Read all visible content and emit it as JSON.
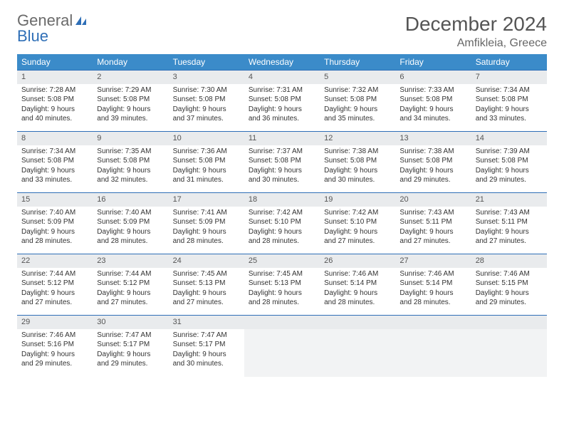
{
  "logo": {
    "word1": "General",
    "word2": "Blue"
  },
  "title": "December 2024",
  "location": "Amfikleia, Greece",
  "colors": {
    "header_bg": "#3b8bc9",
    "header_text": "#ffffff",
    "daynum_bg": "#e9ebed",
    "border": "#2f6fb7",
    "text": "#333333",
    "title_text": "#555555"
  },
  "day_headers": [
    "Sunday",
    "Monday",
    "Tuesday",
    "Wednesday",
    "Thursday",
    "Friday",
    "Saturday"
  ],
  "weeks": [
    [
      {
        "num": "1",
        "sunrise": "7:28 AM",
        "sunset": "5:08 PM",
        "daylight": "9 hours and 40 minutes."
      },
      {
        "num": "2",
        "sunrise": "7:29 AM",
        "sunset": "5:08 PM",
        "daylight": "9 hours and 39 minutes."
      },
      {
        "num": "3",
        "sunrise": "7:30 AM",
        "sunset": "5:08 PM",
        "daylight": "9 hours and 37 minutes."
      },
      {
        "num": "4",
        "sunrise": "7:31 AM",
        "sunset": "5:08 PM",
        "daylight": "9 hours and 36 minutes."
      },
      {
        "num": "5",
        "sunrise": "7:32 AM",
        "sunset": "5:08 PM",
        "daylight": "9 hours and 35 minutes."
      },
      {
        "num": "6",
        "sunrise": "7:33 AM",
        "sunset": "5:08 PM",
        "daylight": "9 hours and 34 minutes."
      },
      {
        "num": "7",
        "sunrise": "7:34 AM",
        "sunset": "5:08 PM",
        "daylight": "9 hours and 33 minutes."
      }
    ],
    [
      {
        "num": "8",
        "sunrise": "7:34 AM",
        "sunset": "5:08 PM",
        "daylight": "9 hours and 33 minutes."
      },
      {
        "num": "9",
        "sunrise": "7:35 AM",
        "sunset": "5:08 PM",
        "daylight": "9 hours and 32 minutes."
      },
      {
        "num": "10",
        "sunrise": "7:36 AM",
        "sunset": "5:08 PM",
        "daylight": "9 hours and 31 minutes."
      },
      {
        "num": "11",
        "sunrise": "7:37 AM",
        "sunset": "5:08 PM",
        "daylight": "9 hours and 30 minutes."
      },
      {
        "num": "12",
        "sunrise": "7:38 AM",
        "sunset": "5:08 PM",
        "daylight": "9 hours and 30 minutes."
      },
      {
        "num": "13",
        "sunrise": "7:38 AM",
        "sunset": "5:08 PM",
        "daylight": "9 hours and 29 minutes."
      },
      {
        "num": "14",
        "sunrise": "7:39 AM",
        "sunset": "5:08 PM",
        "daylight": "9 hours and 29 minutes."
      }
    ],
    [
      {
        "num": "15",
        "sunrise": "7:40 AM",
        "sunset": "5:09 PM",
        "daylight": "9 hours and 28 minutes."
      },
      {
        "num": "16",
        "sunrise": "7:40 AM",
        "sunset": "5:09 PM",
        "daylight": "9 hours and 28 minutes."
      },
      {
        "num": "17",
        "sunrise": "7:41 AM",
        "sunset": "5:09 PM",
        "daylight": "9 hours and 28 minutes."
      },
      {
        "num": "18",
        "sunrise": "7:42 AM",
        "sunset": "5:10 PM",
        "daylight": "9 hours and 28 minutes."
      },
      {
        "num": "19",
        "sunrise": "7:42 AM",
        "sunset": "5:10 PM",
        "daylight": "9 hours and 27 minutes."
      },
      {
        "num": "20",
        "sunrise": "7:43 AM",
        "sunset": "5:11 PM",
        "daylight": "9 hours and 27 minutes."
      },
      {
        "num": "21",
        "sunrise": "7:43 AM",
        "sunset": "5:11 PM",
        "daylight": "9 hours and 27 minutes."
      }
    ],
    [
      {
        "num": "22",
        "sunrise": "7:44 AM",
        "sunset": "5:12 PM",
        "daylight": "9 hours and 27 minutes."
      },
      {
        "num": "23",
        "sunrise": "7:44 AM",
        "sunset": "5:12 PM",
        "daylight": "9 hours and 27 minutes."
      },
      {
        "num": "24",
        "sunrise": "7:45 AM",
        "sunset": "5:13 PM",
        "daylight": "9 hours and 27 minutes."
      },
      {
        "num": "25",
        "sunrise": "7:45 AM",
        "sunset": "5:13 PM",
        "daylight": "9 hours and 28 minutes."
      },
      {
        "num": "26",
        "sunrise": "7:46 AM",
        "sunset": "5:14 PM",
        "daylight": "9 hours and 28 minutes."
      },
      {
        "num": "27",
        "sunrise": "7:46 AM",
        "sunset": "5:14 PM",
        "daylight": "9 hours and 28 minutes."
      },
      {
        "num": "28",
        "sunrise": "7:46 AM",
        "sunset": "5:15 PM",
        "daylight": "9 hours and 29 minutes."
      }
    ],
    [
      {
        "num": "29",
        "sunrise": "7:46 AM",
        "sunset": "5:16 PM",
        "daylight": "9 hours and 29 minutes."
      },
      {
        "num": "30",
        "sunrise": "7:47 AM",
        "sunset": "5:17 PM",
        "daylight": "9 hours and 29 minutes."
      },
      {
        "num": "31",
        "sunrise": "7:47 AM",
        "sunset": "5:17 PM",
        "daylight": "9 hours and 30 minutes."
      },
      null,
      null,
      null,
      null
    ]
  ],
  "labels": {
    "sunrise": "Sunrise:",
    "sunset": "Sunset:",
    "daylight": "Daylight:"
  }
}
